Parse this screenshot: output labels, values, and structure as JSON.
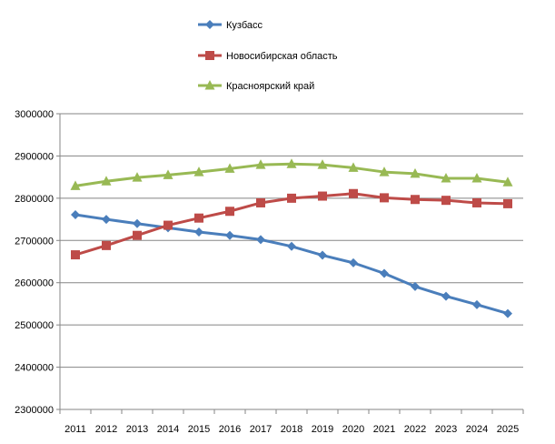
{
  "chart_data": {
    "type": "line",
    "title": "",
    "xlabel": "",
    "ylabel": "",
    "x": [
      "2011",
      "2012",
      "2013",
      "2014",
      "2015",
      "2016",
      "2017",
      "2018",
      "2019",
      "2020",
      "2021",
      "2022",
      "2023",
      "2024",
      "2025"
    ],
    "ylim": [
      2300000,
      3000000
    ],
    "yticks": [
      "2300000",
      "2400000",
      "2500000",
      "2600000",
      "2700000",
      "2800000",
      "2900000",
      "3000000"
    ],
    "grid": true,
    "legend_position": "top",
    "series": [
      {
        "name": "Кузбасс",
        "color": "#4a7ebb",
        "marker": "diamond",
        "values": [
          2761000,
          2750000,
          2740000,
          2730000,
          2720000,
          2712000,
          2702000,
          2686000,
          2665000,
          2647000,
          2622000,
          2591000,
          2568000,
          2548000,
          2527000
        ]
      },
      {
        "name": "Новосибирская область",
        "color": "#be4b48",
        "marker": "square",
        "values": [
          2666000,
          2688000,
          2712000,
          2736000,
          2753000,
          2769000,
          2789000,
          2800000,
          2805000,
          2811000,
          2801000,
          2797000,
          2795000,
          2789000,
          2787000
        ]
      },
      {
        "name": "Красноярский край",
        "color": "#98b954",
        "marker": "triangle",
        "values": [
          2829000,
          2840000,
          2849000,
          2855000,
          2862000,
          2870000,
          2879000,
          2881000,
          2879000,
          2872000,
          2862000,
          2858000,
          2847000,
          2847000,
          2838000
        ]
      }
    ]
  }
}
